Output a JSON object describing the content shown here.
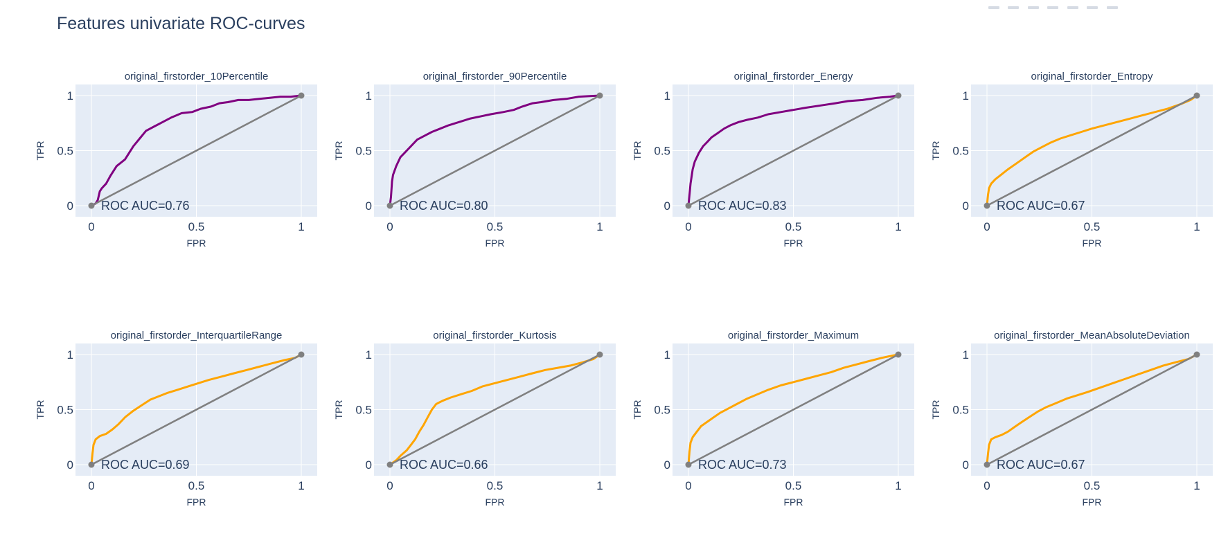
{
  "page": {
    "title": "Features univariate ROC-curves"
  },
  "colors": {
    "plot_bg": "#e5ecf6",
    "text": "#2a3f5f",
    "diag": "#808080",
    "grid": "#ffffff"
  },
  "chart_data": [
    {
      "type": "line",
      "title": "original_firstorder_10Percentile",
      "xlabel": "FPR",
      "ylabel": "TPR",
      "xlim": [
        0,
        1
      ],
      "ylim": [
        0,
        1
      ],
      "xticks": [
        0,
        0.5,
        1
      ],
      "yticks": [
        0,
        0.5,
        1
      ],
      "xtick_labels": [
        "0",
        "0.5",
        "1"
      ],
      "ytick_labels": [
        "0",
        "0.5",
        "1"
      ],
      "annotation": "ROC AUC=0.76",
      "color": "#800080",
      "series": [
        {
          "x": [
            0,
            0.02,
            0.03,
            0.04,
            0.05,
            0.07,
            0.09,
            0.12,
            0.16,
            0.2,
            0.23,
            0.26,
            0.3,
            0.34,
            0.38,
            0.43,
            0.48,
            0.52,
            0.57,
            0.61,
            0.65,
            0.7,
            0.75,
            0.8,
            0.85,
            0.9,
            0.95,
            1
          ],
          "y": [
            0,
            0.02,
            0.05,
            0.13,
            0.16,
            0.2,
            0.27,
            0.36,
            0.42,
            0.54,
            0.61,
            0.68,
            0.72,
            0.76,
            0.8,
            0.84,
            0.85,
            0.88,
            0.9,
            0.93,
            0.94,
            0.96,
            0.96,
            0.97,
            0.98,
            0.99,
            0.99,
            1
          ]
        },
        {
          "x": [
            0,
            1
          ],
          "y": [
            0,
            1
          ]
        }
      ]
    },
    {
      "type": "line",
      "title": "original_firstorder_90Percentile",
      "xlabel": "FPR",
      "ylabel": "TPR",
      "xlim": [
        0,
        1
      ],
      "ylim": [
        0,
        1
      ],
      "xticks": [
        0,
        0.5,
        1
      ],
      "yticks": [
        0,
        0.5,
        1
      ],
      "xtick_labels": [
        "0",
        "0.5",
        "1"
      ],
      "ytick_labels": [
        "0",
        "0.5",
        "1"
      ],
      "annotation": "ROC AUC=0.80",
      "color": "#800080",
      "series": [
        {
          "x": [
            0,
            0.005,
            0.01,
            0.015,
            0.03,
            0.05,
            0.07,
            0.1,
            0.13,
            0.16,
            0.2,
            0.24,
            0.28,
            0.33,
            0.38,
            0.43,
            0.48,
            0.54,
            0.59,
            0.63,
            0.68,
            0.72,
            0.78,
            0.84,
            0.9,
            1
          ],
          "y": [
            0,
            0.08,
            0.22,
            0.28,
            0.36,
            0.44,
            0.48,
            0.54,
            0.6,
            0.63,
            0.67,
            0.7,
            0.73,
            0.76,
            0.79,
            0.81,
            0.83,
            0.85,
            0.87,
            0.9,
            0.93,
            0.94,
            0.96,
            0.97,
            0.99,
            1
          ]
        },
        {
          "x": [
            0,
            1
          ],
          "y": [
            0,
            1
          ]
        }
      ]
    },
    {
      "type": "line",
      "title": "original_firstorder_Energy",
      "xlabel": "FPR",
      "ylabel": "TPR",
      "xlim": [
        0,
        1
      ],
      "ylim": [
        0,
        1
      ],
      "xticks": [
        0,
        0.5,
        1
      ],
      "yticks": [
        0,
        0.5,
        1
      ],
      "xtick_labels": [
        "0",
        "0.5",
        "1"
      ],
      "ytick_labels": [
        "0",
        "0.5",
        "1"
      ],
      "annotation": "ROC AUC=0.83",
      "color": "#800080",
      "series": [
        {
          "x": [
            0,
            0.01,
            0.02,
            0.03,
            0.05,
            0.07,
            0.09,
            0.11,
            0.14,
            0.17,
            0.2,
            0.24,
            0.28,
            0.33,
            0.38,
            0.44,
            0.5,
            0.56,
            0.63,
            0.7,
            0.76,
            0.83,
            0.9,
            0.96,
            1
          ],
          "y": [
            0,
            0.2,
            0.33,
            0.4,
            0.48,
            0.54,
            0.58,
            0.62,
            0.66,
            0.7,
            0.73,
            0.76,
            0.78,
            0.8,
            0.83,
            0.85,
            0.87,
            0.89,
            0.91,
            0.93,
            0.95,
            0.96,
            0.98,
            0.99,
            1
          ]
        },
        {
          "x": [
            0,
            1
          ],
          "y": [
            0,
            1
          ]
        }
      ]
    },
    {
      "type": "line",
      "title": "original_firstorder_Entropy",
      "xlabel": "FPR",
      "ylabel": "TPR",
      "xlim": [
        0,
        1
      ],
      "ylim": [
        0,
        1
      ],
      "xticks": [
        0,
        0.5,
        1
      ],
      "yticks": [
        0,
        0.5,
        1
      ],
      "xtick_labels": [
        "0",
        "0.5",
        "1"
      ],
      "ytick_labels": [
        "0",
        "0.5",
        "1"
      ],
      "annotation": "ROC AUC=0.67",
      "color": "#ffa500",
      "series": [
        {
          "x": [
            0,
            0.005,
            0.01,
            0.02,
            0.04,
            0.06,
            0.08,
            0.1,
            0.13,
            0.16,
            0.19,
            0.22,
            0.26,
            0.3,
            0.35,
            0.4,
            0.45,
            0.5,
            0.56,
            0.62,
            0.68,
            0.74,
            0.8,
            0.86,
            0.92,
            0.97,
            1
          ],
          "y": [
            0,
            0.1,
            0.16,
            0.2,
            0.24,
            0.27,
            0.3,
            0.33,
            0.37,
            0.41,
            0.45,
            0.49,
            0.53,
            0.57,
            0.61,
            0.64,
            0.67,
            0.7,
            0.73,
            0.76,
            0.79,
            0.82,
            0.85,
            0.88,
            0.92,
            0.96,
            1
          ]
        },
        {
          "x": [
            0,
            1
          ],
          "y": [
            0,
            1
          ]
        }
      ]
    },
    {
      "type": "line",
      "title": "original_firstorder_InterquartileRange",
      "xlabel": "FPR",
      "ylabel": "TPR",
      "xlim": [
        0,
        1
      ],
      "ylim": [
        0,
        1
      ],
      "xticks": [
        0,
        0.5,
        1
      ],
      "yticks": [
        0,
        0.5,
        1
      ],
      "xtick_labels": [
        "0",
        "0.5",
        "1"
      ],
      "ytick_labels": [
        "0",
        "0.5",
        "1"
      ],
      "annotation": "ROC AUC=0.69",
      "color": "#ffa500",
      "series": [
        {
          "x": [
            0,
            0.005,
            0.01,
            0.02,
            0.04,
            0.07,
            0.1,
            0.13,
            0.16,
            0.2,
            0.24,
            0.28,
            0.32,
            0.36,
            0.41,
            0.46,
            0.51,
            0.56,
            0.62,
            0.68,
            0.74,
            0.8,
            0.86,
            0.92,
            0.97,
            1
          ],
          "y": [
            0,
            0.1,
            0.18,
            0.23,
            0.26,
            0.28,
            0.32,
            0.37,
            0.43,
            0.49,
            0.54,
            0.59,
            0.62,
            0.65,
            0.68,
            0.71,
            0.74,
            0.77,
            0.8,
            0.83,
            0.86,
            0.89,
            0.92,
            0.95,
            0.97,
            1
          ]
        },
        {
          "x": [
            0,
            1
          ],
          "y": [
            0,
            1
          ]
        }
      ]
    },
    {
      "type": "line",
      "title": "original_firstorder_Kurtosis",
      "xlabel": "FPR",
      "ylabel": "TPR",
      "xlim": [
        0,
        1
      ],
      "ylim": [
        0,
        1
      ],
      "xticks": [
        0,
        0.5,
        1
      ],
      "yticks": [
        0,
        0.5,
        1
      ],
      "xtick_labels": [
        "0",
        "0.5",
        "1"
      ],
      "ytick_labels": [
        "0",
        "0.5",
        "1"
      ],
      "annotation": "ROC AUC=0.66",
      "color": "#ffa500",
      "series": [
        {
          "x": [
            0,
            0.03,
            0.05,
            0.08,
            0.1,
            0.12,
            0.14,
            0.16,
            0.18,
            0.2,
            0.22,
            0.25,
            0.29,
            0.34,
            0.39,
            0.44,
            0.5,
            0.56,
            0.62,
            0.68,
            0.74,
            0.8,
            0.86,
            0.92,
            0.97,
            1
          ],
          "y": [
            0,
            0.04,
            0.08,
            0.13,
            0.18,
            0.23,
            0.3,
            0.36,
            0.43,
            0.5,
            0.55,
            0.58,
            0.61,
            0.64,
            0.67,
            0.71,
            0.74,
            0.77,
            0.8,
            0.83,
            0.86,
            0.88,
            0.9,
            0.93,
            0.96,
            1
          ]
        },
        {
          "x": [
            0,
            1
          ],
          "y": [
            0,
            1
          ]
        }
      ]
    },
    {
      "type": "line",
      "title": "original_firstorder_Maximum",
      "xlabel": "FPR",
      "ylabel": "TPR",
      "xlim": [
        0,
        1
      ],
      "ylim": [
        0,
        1
      ],
      "xticks": [
        0,
        0.5,
        1
      ],
      "yticks": [
        0,
        0.5,
        1
      ],
      "xtick_labels": [
        "0",
        "0.5",
        "1"
      ],
      "ytick_labels": [
        "0",
        "0.5",
        "1"
      ],
      "annotation": "ROC AUC=0.73",
      "color": "#ffa500",
      "series": [
        {
          "x": [
            0,
            0.005,
            0.01,
            0.02,
            0.04,
            0.06,
            0.09,
            0.12,
            0.15,
            0.19,
            0.23,
            0.28,
            0.33,
            0.38,
            0.44,
            0.5,
            0.56,
            0.62,
            0.68,
            0.74,
            0.8,
            0.86,
            0.92,
            0.97,
            1
          ],
          "y": [
            0,
            0.12,
            0.2,
            0.25,
            0.3,
            0.35,
            0.39,
            0.43,
            0.47,
            0.51,
            0.55,
            0.6,
            0.64,
            0.68,
            0.72,
            0.75,
            0.78,
            0.81,
            0.84,
            0.88,
            0.91,
            0.94,
            0.97,
            0.99,
            1
          ]
        },
        {
          "x": [
            0,
            1
          ],
          "y": [
            0,
            1
          ]
        }
      ]
    },
    {
      "type": "line",
      "title": "original_firstorder_MeanAbsoluteDeviation",
      "xlabel": "FPR",
      "ylabel": "TPR",
      "xlim": [
        0,
        1
      ],
      "ylim": [
        0,
        1
      ],
      "xticks": [
        0,
        0.5,
        1
      ],
      "yticks": [
        0,
        0.5,
        1
      ],
      "xtick_labels": [
        "0",
        "0.5",
        "1"
      ],
      "ytick_labels": [
        "0",
        "0.5",
        "1"
      ],
      "annotation": "ROC AUC=0.67",
      "color": "#ffa500",
      "series": [
        {
          "x": [
            0,
            0.005,
            0.01,
            0.02,
            0.04,
            0.07,
            0.1,
            0.13,
            0.16,
            0.2,
            0.24,
            0.28,
            0.33,
            0.38,
            0.43,
            0.48,
            0.54,
            0.6,
            0.66,
            0.72,
            0.78,
            0.84,
            0.9,
            0.96,
            1
          ],
          "y": [
            0,
            0.1,
            0.18,
            0.23,
            0.25,
            0.27,
            0.3,
            0.34,
            0.38,
            0.43,
            0.48,
            0.52,
            0.56,
            0.6,
            0.63,
            0.66,
            0.7,
            0.74,
            0.78,
            0.82,
            0.86,
            0.9,
            0.93,
            0.96,
            1
          ]
        },
        {
          "x": [
            0,
            1
          ],
          "y": [
            0,
            1
          ]
        }
      ]
    }
  ]
}
